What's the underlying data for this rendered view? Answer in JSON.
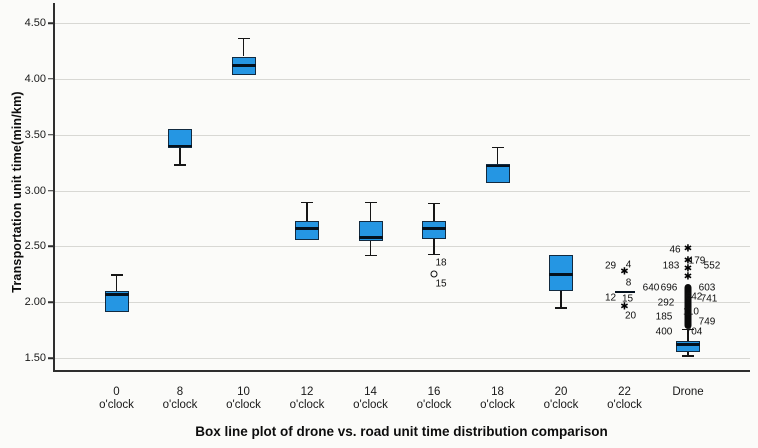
{
  "chart_data": {
    "type": "box",
    "title": "Box line plot of drone vs. road unit time distribution comparison",
    "ylabel": "Transportation unit time(min/km)",
    "ylim": [
      1.5,
      4.5
    ],
    "grid": true,
    "y_ticks": [
      "4.50",
      "4.00",
      "3.50",
      "3.00",
      "2.50",
      "2.00",
      "1.50"
    ],
    "y_tick_values": [
      4.5,
      4.0,
      3.5,
      3.0,
      2.5,
      2.0,
      1.5
    ],
    "colors": {
      "box_fill": "#2596e3",
      "box_border": "#122a40",
      "median": "#04111e",
      "whisker": "#161616",
      "gridline": "#d8d8d4",
      "axis": "#2e2e2e",
      "background": "#fbfbf9"
    },
    "categories": [
      {
        "line1": "0",
        "line2": "o'clock"
      },
      {
        "line1": "8",
        "line2": "o'clock"
      },
      {
        "line1": "10",
        "line2": "o'clock"
      },
      {
        "line1": "12",
        "line2": "o'clock"
      },
      {
        "line1": "14",
        "line2": "o'clock"
      },
      {
        "line1": "16",
        "line2": "o'clock"
      },
      {
        "line1": "18",
        "line2": "o'clock"
      },
      {
        "line1": "20",
        "line2": "o'clock"
      },
      {
        "line1": "22",
        "line2": "o'clock"
      },
      {
        "line1": "Drone",
        "line2": ""
      }
    ],
    "boxes": [
      {
        "category": "0 o'clock",
        "q1": 1.91,
        "median": 2.07,
        "q3": 2.1,
        "whisker_low": null,
        "whisker_high": 2.25
      },
      {
        "category": "8 o'clock",
        "q1": 3.38,
        "median": 3.4,
        "q3": 3.55,
        "whisker_low": 3.22,
        "whisker_high": null
      },
      {
        "category": "10 o'clock",
        "q1": 4.03,
        "median": 4.12,
        "q3": 4.2,
        "whisker_low": null,
        "whisker_high": 4.37
      },
      {
        "category": "12 o'clock",
        "q1": 2.56,
        "median": 2.66,
        "q3": 2.73,
        "whisker_low": null,
        "whisker_high": 2.9
      },
      {
        "category": "14 o'clock",
        "q1": 2.55,
        "median": 2.58,
        "q3": 2.73,
        "whisker_low": 2.41,
        "whisker_high": 2.9
      },
      {
        "category": "16 o'clock",
        "q1": 2.57,
        "median": 2.66,
        "q3": 2.73,
        "whisker_low": 2.42,
        "whisker_high": 2.89,
        "outliers": [
          {
            "marker": "circle",
            "value": 2.25
          }
        ],
        "point_labels": [
          {
            "text": "18",
            "value": 2.35,
            "dx": 7
          },
          {
            "text": "15",
            "value": 2.16,
            "dx": 7
          }
        ]
      },
      {
        "category": "18 o'clock",
        "q1": 3.07,
        "median": 3.22,
        "q3": 3.24,
        "whisker_low": null,
        "whisker_high": 3.39
      },
      {
        "category": "20 o'clock",
        "q1": 2.1,
        "median": 2.25,
        "q3": 2.42,
        "whisker_low": 1.94,
        "whisker_high": null
      },
      {
        "category": "22 o'clock",
        "q1": null,
        "median": null,
        "q3": null,
        "whisker_low": null,
        "whisker_high": null,
        "collapsed_median": 2.09,
        "outliers": [
          {
            "marker": "star",
            "value": 2.26
          },
          {
            "marker": "star",
            "value": 1.95
          }
        ],
        "point_labels": [
          {
            "text": "29",
            "value": 2.32,
            "dx": -14
          },
          {
            "text": "4",
            "value": 2.33,
            "dx": 4
          },
          {
            "text": "8",
            "value": 2.17,
            "dx": 4
          },
          {
            "text": "12",
            "value": 2.04,
            "dx": -14
          },
          {
            "text": "15",
            "value": 2.03,
            "dx": 3
          },
          {
            "text": "20",
            "value": 1.88,
            "dx": 6
          }
        ]
      },
      {
        "category": "Drone",
        "q1": 1.55,
        "median": 1.62,
        "q3": 1.65,
        "whisker_low": 1.51,
        "whisker_high": 1.76,
        "dense_outliers": {
          "from": 1.76,
          "to": 2.16
        },
        "outliers": [
          {
            "marker": "star",
            "value": 2.47
          },
          {
            "marker": "star",
            "value": 2.36
          },
          {
            "marker": "star",
            "value": 2.29
          },
          {
            "marker": "star",
            "value": 2.22
          }
        ],
        "point_labels": [
          {
            "text": "46",
            "value": 2.47,
            "dx": -13
          },
          {
            "text": "183",
            "value": 2.32,
            "dx": -17
          },
          {
            "text": "179",
            "value": 2.37,
            "dx": 9
          },
          {
            "text": "552",
            "value": 2.32,
            "dx": 24
          },
          {
            "text": "640",
            "value": 2.13,
            "dx": -37
          },
          {
            "text": "696",
            "value": 2.13,
            "dx": -19
          },
          {
            "text": "603",
            "value": 2.13,
            "dx": 19
          },
          {
            "text": "642",
            "value": 2.05,
            "dx": 6
          },
          {
            "text": "741",
            "value": 2.03,
            "dx": 21
          },
          {
            "text": "292",
            "value": 1.99,
            "dx": -22
          },
          {
            "text": "110",
            "value": 1.91,
            "dx": 3
          },
          {
            "text": "185",
            "value": 1.87,
            "dx": -24
          },
          {
            "text": "749",
            "value": 1.82,
            "dx": 19
          },
          {
            "text": "400",
            "value": 1.73,
            "dx": -24
          },
          {
            "text": "704",
            "value": 1.73,
            "dx": 6
          }
        ]
      }
    ]
  }
}
